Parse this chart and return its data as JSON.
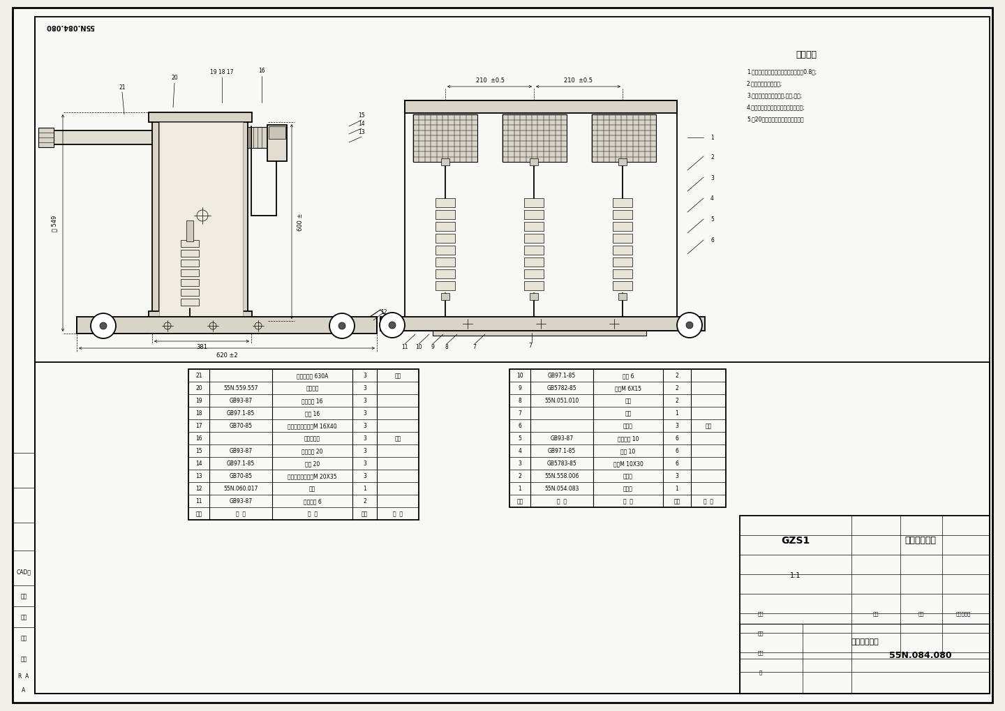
{
  "bg_color": "#f0f0e8",
  "paper_color": "#f8f8f4",
  "line_color": "#1a1a1a",
  "title_rotated": "55N.084.080",
  "tech_req_title": "技术要求",
  "tech_req_lines": [
    "1.装配所选用的螺栓紧固件等精度均为0.8级;",
    "2.确保所有连接管可靠;",
    "3.确保所有机构动作灵活,有效,可靠;",
    "4.确保所有触头与母排在中置完全接触;",
    "5.序20指标一次断路管全插换情况。"
  ],
  "bom_left_rows": [
    [
      "21",
      "",
      "偶极式触头 630A",
      "3",
      "备用"
    ],
    [
      "20",
      "55N.559.557",
      "一次母管",
      "3",
      ""
    ],
    [
      "19",
      "GB93-87",
      "弹簧垫圈 16",
      "3",
      ""
    ],
    [
      "18",
      "GB97.1-85",
      "平垫 16",
      "3",
      ""
    ],
    [
      "17",
      "GB70-85",
      "内六角圆柱头螺钉M 16X40",
      "3",
      ""
    ],
    [
      "16",
      "",
      "支持绝缘子",
      "3",
      "备用"
    ],
    [
      "15",
      "GB93-87",
      "弹簧垫圈 20",
      "3",
      ""
    ],
    [
      "14",
      "GB97.1-85",
      "平垫 20",
      "3",
      ""
    ],
    [
      "13",
      "GB70-85",
      "内六角圆柱头螺钉M 20X35",
      "3",
      ""
    ],
    [
      "12",
      "55N.060.017",
      "底板",
      "1",
      ""
    ],
    [
      "11",
      "GB93-87",
      "弹簧垫圈 6",
      "2",
      ""
    ],
    [
      "序号",
      "代  号",
      "名  称",
      "数量",
      "备  注"
    ]
  ],
  "bom_right_rows": [
    [
      "10",
      "GB97.1-85",
      "平垫 6",
      "2",
      ""
    ],
    [
      "9",
      "GB5782-85",
      "螺栓M 6X15",
      "2",
      ""
    ],
    [
      "8",
      "55N.051.010",
      "插柱",
      "2",
      ""
    ],
    [
      "7",
      "",
      "盖板",
      "1",
      ""
    ],
    [
      "6",
      "",
      "避雷器",
      "3",
      "外配"
    ],
    [
      "5",
      "GB93-87",
      "弹簧垫圈 10",
      "6",
      ""
    ],
    [
      "4",
      "GB97.1-85",
      "平垫 10",
      "6",
      ""
    ],
    [
      "3",
      "GB5783-85",
      "螺栓M 10X30",
      "6",
      ""
    ],
    [
      "2",
      "55N.558.006",
      "连接板",
      "3",
      ""
    ],
    [
      "1",
      "55N.054.083",
      "本装配",
      "1",
      ""
    ],
    [
      "序号",
      "代  号",
      "名  称",
      "数量",
      "备  注"
    ]
  ],
  "title_model": "GZS1",
  "title_product": "避雷器车装配",
  "title_drawing_no": "55N.084.080",
  "title_scale": "1:1"
}
